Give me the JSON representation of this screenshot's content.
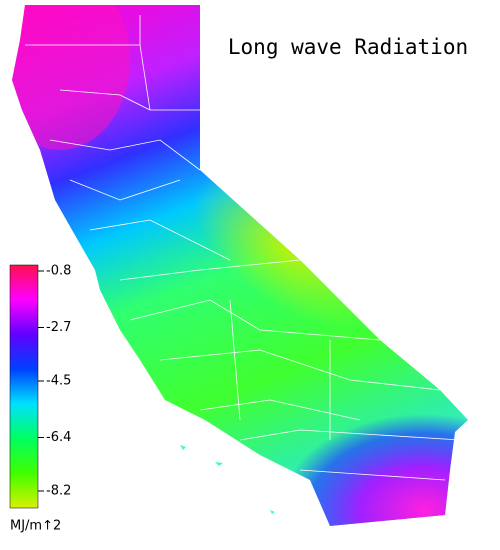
{
  "title": "Long wave Radiation",
  "colorbar": {
    "ticks": [
      -0.8,
      -2.7,
      -4.5,
      -6.4,
      -8.2
    ],
    "unit": "MJ/m↑2",
    "colors": [
      "#ff1050",
      "#ff00ff",
      "#6000ff",
      "#0040ff",
      "#00e0ff",
      "#00ff60",
      "#40ff00",
      "#d8f000"
    ]
  }
}
